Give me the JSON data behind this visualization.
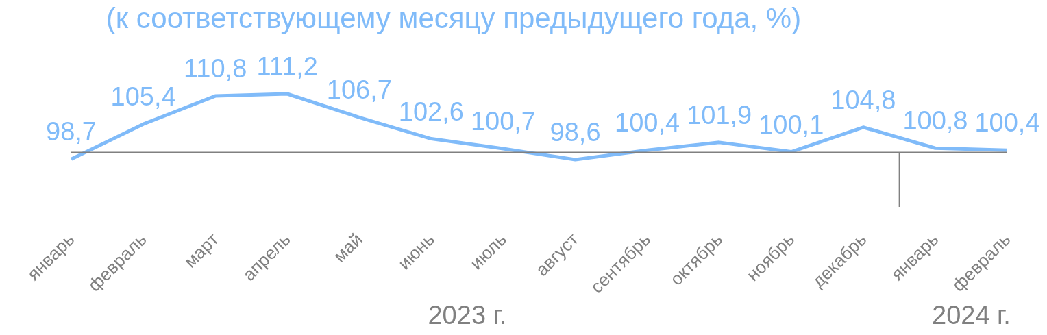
{
  "chart_data": {
    "type": "line",
    "title": "(к соответствующему месяцу предыдущего года, %)",
    "categories": [
      "январь",
      "февраль",
      "март",
      "апрель",
      "май",
      "июнь",
      "июль",
      "август",
      "сентябрь",
      "октябрь",
      "ноябрь",
      "декабрь",
      "январь",
      "февраль"
    ],
    "series": [
      {
        "color": "#80bbf9",
        "values": [
          98.7,
          105.4,
          110.8,
          111.2,
          106.7,
          102.6,
          100.7,
          98.6,
          100.4,
          101.9,
          100.1,
          104.8,
          100.8,
          100.4
        ],
        "value_labels": [
          "98,7",
          "105,4",
          "110,8",
          "111,2",
          "106,7",
          "102,6",
          "100,7",
          "98,6",
          "100,4",
          "101,9",
          "100,1",
          "104,8",
          "100,8",
          "100,4"
        ]
      }
    ],
    "tick_labels": "x",
    "line_style": "solid",
    "ref_lines": [
      {
        "axis": "y",
        "value": 100,
        "color": "#808080"
      }
    ],
    "annotations": [
      "2023 г.",
      "2024 г."
    ]
  }
}
